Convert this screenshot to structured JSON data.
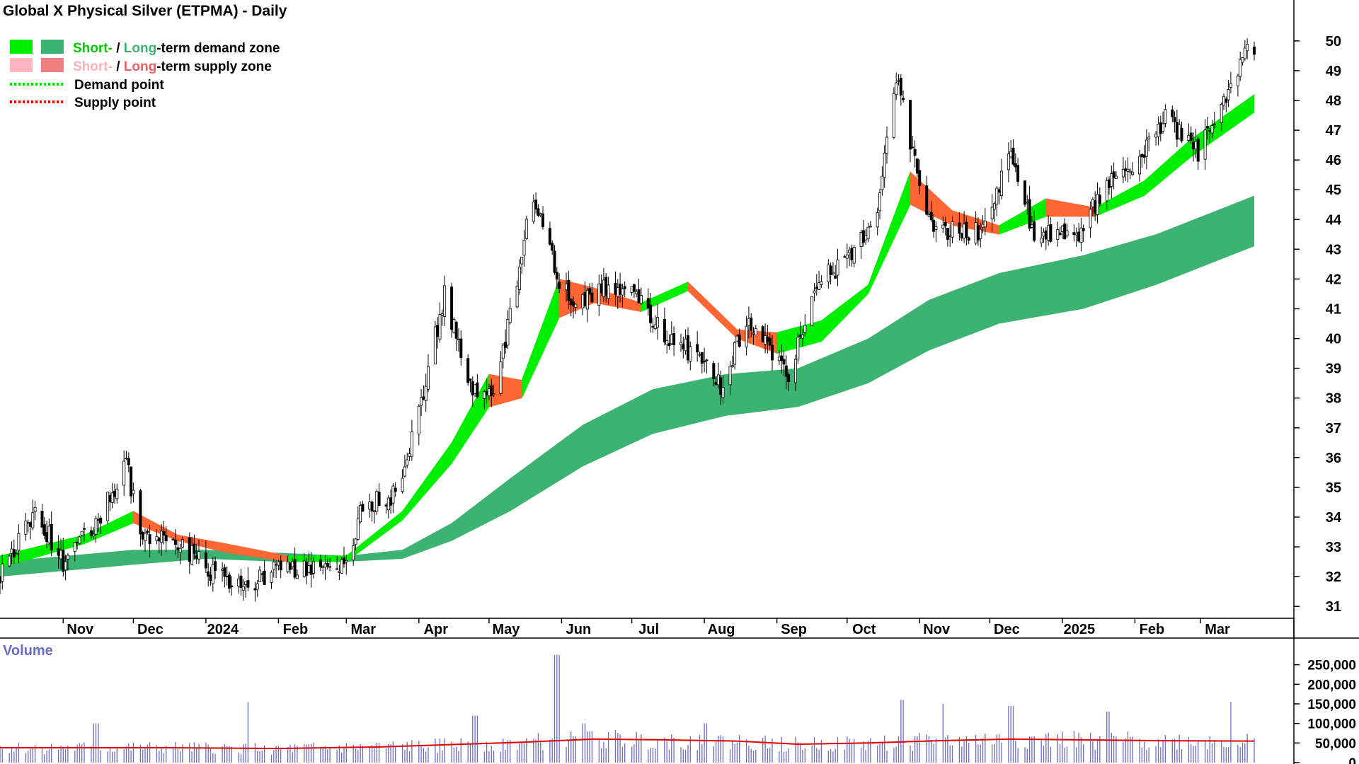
{
  "chart_data": {
    "type": "candlestick",
    "title": "Global X Physical Silver (ETPMA) - Daily",
    "legend": {
      "demand_zone": {
        "short": "Short-",
        "sep": " / ",
        "long": "Long",
        "rest": "-term demand zone"
      },
      "supply_zone": {
        "short": "Short-",
        "sep": " / ",
        "long": "Long",
        "rest": "-term supply zone"
      },
      "demand_point": "Demand point",
      "supply_point": "Supply point",
      "placement": "top-left"
    },
    "price_axis": {
      "position": "right",
      "ticks": [
        31,
        32,
        33,
        34,
        35,
        36,
        37,
        38,
        39,
        40,
        41,
        42,
        43,
        44,
        45,
        46,
        47,
        48,
        49,
        50
      ],
      "ylim": [
        30.6,
        50.9
      ]
    },
    "x_axis": {
      "labels": [
        "Nov",
        "Dec",
        "2024",
        "Feb",
        "Mar",
        "Apr",
        "May",
        "Jun",
        "Jul",
        "Aug",
        "Sep",
        "Oct",
        "Nov",
        "Dec",
        "2025",
        "Feb",
        "Mar"
      ],
      "months": [
        "2023-11",
        "2023-12",
        "2024-01",
        "2024-02",
        "2024-03",
        "2024-04",
        "2024-05",
        "2024-06",
        "2024-07",
        "2024-08",
        "2024-09",
        "2024-10",
        "2024-11",
        "2024-12",
        "2025-01",
        "2025-02",
        "2025-03"
      ],
      "range": [
        "2023-10-05",
        "2025-03-24"
      ]
    },
    "price_series": {
      "name": "Close",
      "x": [
        "2023-10-05",
        "2023-10-20",
        "2023-11-01",
        "2023-11-15",
        "2023-11-28",
        "2023-12-05",
        "2023-12-15",
        "2024-01-03",
        "2024-01-18",
        "2024-02-01",
        "2024-02-15",
        "2024-02-29",
        "2024-03-08",
        "2024-03-22",
        "2024-04-01",
        "2024-04-12",
        "2024-04-22",
        "2024-05-03",
        "2024-05-20",
        "2024-05-31",
        "2024-06-07",
        "2024-06-20",
        "2024-07-01",
        "2024-07-15",
        "2024-07-25",
        "2024-08-08",
        "2024-08-20",
        "2024-09-06",
        "2024-09-20",
        "2024-09-30",
        "2024-10-14",
        "2024-10-22",
        "2024-11-04",
        "2024-11-15",
        "2024-11-28",
        "2024-12-10",
        "2024-12-20",
        "2025-01-08",
        "2025-01-20",
        "2025-02-03",
        "2025-02-14",
        "2025-02-28",
        "2025-03-10",
        "2025-03-21"
      ],
      "y": [
        32.0,
        34.2,
        32.5,
        33.8,
        35.8,
        33.2,
        33.5,
        32.2,
        31.6,
        32.3,
        32.2,
        32.3,
        34.3,
        34.8,
        37.5,
        41.5,
        38.5,
        38.0,
        44.9,
        42.0,
        41.1,
        41.7,
        41.9,
        40.1,
        39.6,
        38.4,
        40.7,
        38.8,
        42.0,
        42.5,
        44.2,
        48.8,
        44.0,
        43.6,
        43.6,
        46.2,
        43.5,
        43.5,
        45.3,
        46.0,
        47.4,
        46.3,
        47.6,
        49.7
      ]
    },
    "long_term_zone": {
      "x": [
        "2023-10-05",
        "2023-12-01",
        "2024-01-01",
        "2024-02-01",
        "2024-03-01",
        "2024-03-25",
        "2024-04-15",
        "2024-05-10",
        "2024-06-10",
        "2024-07-10",
        "2024-08-10",
        "2024-09-10",
        "2024-10-10",
        "2024-11-05",
        "2024-12-05",
        "2025-01-10",
        "2025-02-10",
        "2025-03-24"
      ],
      "upper": [
        32.5,
        32.9,
        32.9,
        32.8,
        32.7,
        32.9,
        33.8,
        35.3,
        37.1,
        38.3,
        38.8,
        39.0,
        40.0,
        41.3,
        42.2,
        42.8,
        43.5,
        44.8
      ],
      "lower": [
        32.0,
        32.4,
        32.6,
        32.5,
        32.5,
        32.6,
        33.2,
        34.2,
        35.7,
        36.8,
        37.4,
        37.7,
        38.5,
        39.6,
        40.5,
        41.0,
        41.8,
        43.1
      ],
      "color": "#3cb371"
    },
    "short_term_zone": {
      "x": [
        "2023-10-05",
        "2023-11-10",
        "2023-12-01",
        "2023-12-20",
        "2024-01-10",
        "2024-02-05",
        "2024-03-01",
        "2024-03-25",
        "2024-04-15",
        "2024-05-01",
        "2024-05-15",
        "2024-05-31",
        "2024-06-15",
        "2024-07-05",
        "2024-07-25",
        "2024-08-15",
        "2024-09-01",
        "2024-09-20",
        "2024-10-10",
        "2024-10-28",
        "2024-11-15",
        "2024-12-05",
        "2024-12-25",
        "2025-01-15",
        "2025-02-05",
        "2025-02-25",
        "2025-03-24"
      ],
      "upper": [
        32.7,
        33.4,
        34.2,
        33.4,
        33.1,
        32.7,
        32.7,
        34.2,
        36.5,
        38.8,
        38.6,
        42.0,
        41.7,
        41.2,
        41.9,
        40.3,
        40.2,
        40.6,
        41.8,
        45.6,
        44.3,
        43.8,
        44.7,
        44.4,
        45.3,
        46.7,
        48.2
      ],
      "lower": [
        32.3,
        33.1,
        33.8,
        33.2,
        32.8,
        32.5,
        32.5,
        33.9,
        35.8,
        37.7,
        38.0,
        40.7,
        41.2,
        40.9,
        41.6,
        40.0,
        39.5,
        39.9,
        41.5,
        44.5,
        43.8,
        43.5,
        44.1,
        44.1,
        44.8,
        46.1,
        47.6
      ],
      "color_up": "#00ee00",
      "color_down": "#ff6633",
      "color_fade": "#ffb6c1"
    },
    "volume": {
      "title": "Volume",
      "ticks": [
        0,
        50000,
        100000,
        150000,
        200000,
        250000
      ],
      "tick_labels": [
        "0",
        "50,000",
        "100,000",
        "150,000",
        "200,000",
        "250,000"
      ],
      "ylim": [
        0,
        300000
      ],
      "average_color": "#e00000",
      "bar_color": "#6b6bc8",
      "average": {
        "x": [
          "2023-10-05",
          "2023-12-15",
          "2024-02-01",
          "2024-03-15",
          "2024-04-15",
          "2024-05-15",
          "2024-06-15",
          "2024-07-15",
          "2024-08-15",
          "2024-09-10",
          "2024-10-10",
          "2024-11-10",
          "2024-12-10",
          "2025-01-10",
          "2025-02-10",
          "2025-03-24"
        ],
        "y": [
          38000,
          38000,
          36000,
          40000,
          46000,
          52000,
          60000,
          58000,
          55000,
          47000,
          50000,
          56000,
          60000,
          58000,
          56000,
          55000
        ]
      },
      "spikes": {
        "x": [
          "2023-11-15",
          "2024-01-20",
          "2024-04-25",
          "2024-05-30",
          "2024-06-10",
          "2024-08-02",
          "2024-10-25",
          "2024-11-10",
          "2024-12-10",
          "2025-01-20",
          "2025-03-15"
        ],
        "y": [
          100000,
          155000,
          120000,
          275000,
          100000,
          100000,
          160000,
          150000,
          145000,
          130000,
          155000
        ]
      }
    }
  }
}
